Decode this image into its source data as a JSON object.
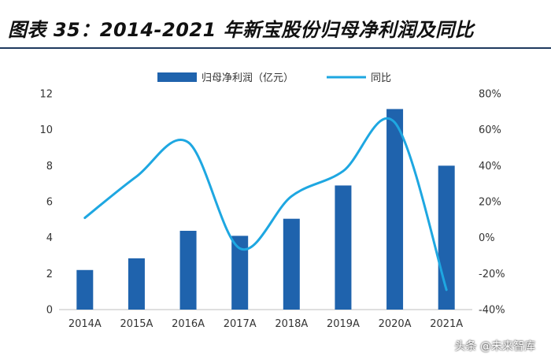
{
  "header": {
    "title": "图表 35：2014-2021 年新宝股份归母净利润及同比"
  },
  "watermark": "头条 @未来智库",
  "colors": {
    "bar": "#1f63ad",
    "line": "#1ea7e1",
    "title_rule": "#1f3a5f",
    "axis_text": "#333333"
  },
  "chart_data": {
    "type": "bar",
    "title": "图表 35：2014-2021 年新宝股份归母净利润及同比",
    "categories": [
      "2014A",
      "2015A",
      "2016A",
      "2017A",
      "2018A",
      "2019A",
      "2020A",
      "2021A"
    ],
    "series": [
      {
        "name": "归母净利润（亿元）",
        "type": "bar",
        "axis": "left",
        "values": [
          2.2,
          2.85,
          4.38,
          4.1,
          5.05,
          6.9,
          11.15,
          8.0
        ]
      },
      {
        "name": "同比",
        "type": "line",
        "axis": "right",
        "smooth": true,
        "values": [
          11,
          34,
          53,
          -6,
          23,
          37,
          64,
          -29
        ]
      }
    ],
    "left_axis": {
      "ylim": [
        0,
        12
      ],
      "ticks": [
        "0",
        "2",
        "4",
        "6",
        "8",
        "10",
        "12"
      ]
    },
    "right_axis": {
      "ylim": [
        -40,
        80
      ],
      "ticks": [
        "-40%",
        "-20%",
        "0%",
        "20%",
        "40%",
        "60%",
        "80%"
      ]
    },
    "legend": {
      "position": "top-center"
    },
    "grid": false
  }
}
